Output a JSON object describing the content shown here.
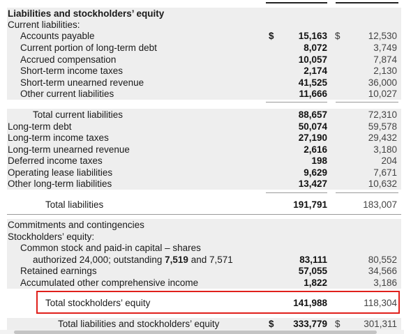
{
  "header": "Liabilities and stockholders’ equity",
  "current_liabilities_label": "Current liabilities:",
  "current_items": [
    {
      "label": "Accounts payable",
      "dollar": "$",
      "current": "15,163",
      "prior_dollar": "$",
      "prior": "12,530"
    },
    {
      "label": "Current portion of long-term debt",
      "current": "8,072",
      "prior": "3,749"
    },
    {
      "label": "Accrued compensation",
      "current": "10,057",
      "prior": "7,874"
    },
    {
      "label": "Short-term income taxes",
      "current": "2,174",
      "prior": "2,130"
    },
    {
      "label": "Short-term unearned revenue",
      "current": "41,525",
      "prior": "36,000"
    },
    {
      "label": "Other current liabilities",
      "current": "11,666",
      "prior": "10,027"
    }
  ],
  "total_current": {
    "label": "Total current liabilities",
    "current": "88,657",
    "prior": "72,310"
  },
  "longterm_items": [
    {
      "label": "Long-term debt",
      "current": "50,074",
      "prior": "59,578"
    },
    {
      "label": "Long-term income taxes",
      "current": "27,190",
      "prior": "29,432"
    },
    {
      "label": "Long-term unearned revenue",
      "current": "2,616",
      "prior": "3,180"
    },
    {
      "label": "Deferred income taxes",
      "current": "198",
      "prior": "204"
    },
    {
      "label": "Operating lease liabilities",
      "current": "9,629",
      "prior": "7,671"
    },
    {
      "label": "Other long-term liabilities",
      "current": "13,427",
      "prior": "10,632"
    }
  ],
  "total_liabilities": {
    "label": "Total liabilities",
    "current": "191,791",
    "prior": "183,007"
  },
  "commitments_label": "Commitments and contingencies",
  "equity_label": "Stockholders’ equity:",
  "common_stock": {
    "line1": "Common stock and paid-in capital – shares",
    "line2_prefix": "authorized 24,000; outstanding ",
    "line2_bold": "7,519",
    "line2_suffix": " and 7,571",
    "current": "83,111",
    "prior": "80,552"
  },
  "retained": {
    "label": "Retained earnings",
    "current": "57,055",
    "prior": "34,566"
  },
  "aoci": {
    "label": "Accumulated other comprehensive income",
    "current": "1,822",
    "prior": "3,186"
  },
  "total_equity": {
    "label": "Total stockholders’ equity",
    "current": "141,988",
    "prior": "118,304"
  },
  "total_le": {
    "label": "Total liabilities and stockholders’ equity",
    "dollar": "$",
    "current": "333,779",
    "prior_dollar": "$",
    "prior": "301,311"
  },
  "colors": {
    "highlight_border": "#e0201b",
    "row_shade": "#eeeeee"
  }
}
